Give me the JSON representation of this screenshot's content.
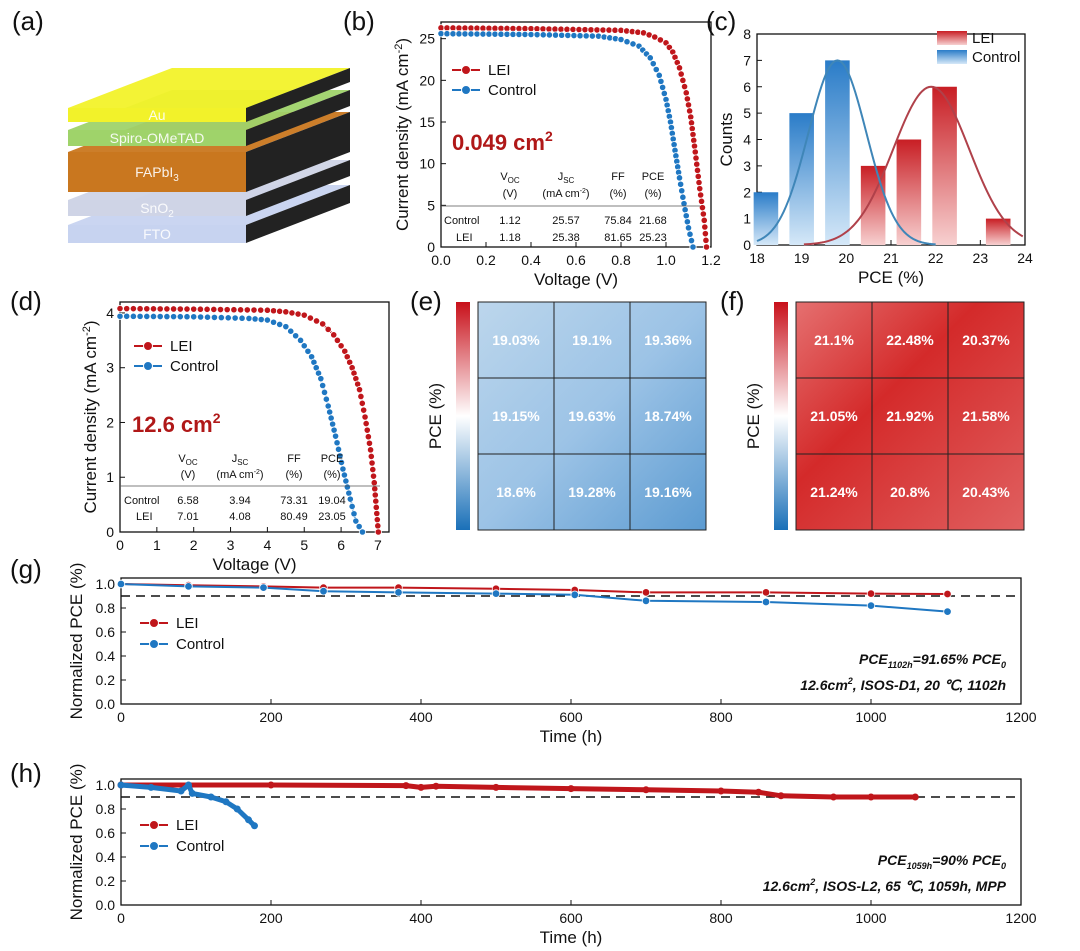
{
  "panels": {
    "a": "(a)",
    "b": "(b)",
    "c": "(c)",
    "d": "(d)",
    "e": "(e)",
    "f": "(f)",
    "g": "(g)",
    "h": "(h)"
  },
  "device_stack": {
    "layers": [
      "Au",
      "Spiro-OMeTAD",
      "FAPbI",
      "SnO",
      "FTO"
    ],
    "colors": [
      "#f2f22a",
      "#9fd36a",
      "#c9771f",
      "#cfd4e6",
      "#c7d3f0"
    ]
  },
  "colors": {
    "lei": "#c0161b",
    "control": "#1f77c2",
    "dash": "#111111"
  },
  "panel_b": {
    "area_label": "0.049 cm",
    "area_sup": "2",
    "table": {
      "headers": [
        "V",
        "J",
        "FF",
        "PCE"
      ],
      "header_subs": [
        "OC",
        "SC",
        "",
        ""
      ],
      "units": [
        "(V)",
        "(mA cm",
        "(%)",
        "(%)"
      ],
      "unit_sup": "-2",
      "unit_tail": ")",
      "rows": [
        {
          "name": "Control",
          "values": [
            "1.12",
            "25.57",
            "75.84",
            "21.68"
          ]
        },
        {
          "name": "LEI",
          "values": [
            "1.18",
            "25.38",
            "81.65",
            "25.23"
          ]
        }
      ]
    }
  },
  "panel_d": {
    "area_label": "12.6 cm",
    "area_sup": "2",
    "table": {
      "headers": [
        "V",
        "J",
        "FF",
        "PCE"
      ],
      "header_subs": [
        "OC",
        "SC",
        "",
        ""
      ],
      "units": [
        "(V)",
        "(mA cm",
        "(%)",
        "(%)"
      ],
      "unit_sup": "-2",
      "unit_tail": ")",
      "rows": [
        {
          "name": "Control",
          "values": [
            "6.58",
            "3.94",
            "73.31",
            "19.04"
          ]
        },
        {
          "name": "LEI",
          "values": [
            "7.01",
            "4.08",
            "80.49",
            "23.05"
          ]
        }
      ]
    }
  },
  "panel_g_note": {
    "line1_a": "PCE",
    "line1_sub": "1102h",
    "line1_b": "=91.65% PCE",
    "line1_sub2": "0",
    "line2_a": "12.6cm",
    "line2_sup": "2",
    "line2_b": ", ISOS-D1, 20 ℃, 1102h"
  },
  "panel_h_note": {
    "line1_a": "PCE",
    "line1_sub": "1059h",
    "line1_b": "=90% PCE",
    "line1_sub2": "0",
    "line2_a": "12.6cm",
    "line2_sup": "2",
    "line2_b": ", ISOS-L2, 65 ℃, 1059h, MPP"
  },
  "chart_data": [
    {
      "id": "b",
      "type": "line",
      "xlabel": "Voltage (V)",
      "ylabel": "Current density (mA cm",
      "ylabel_sup": "-2",
      "ylabel_tail": ")",
      "xlim": [
        0,
        1.2
      ],
      "ylim": [
        0,
        27
      ],
      "xticks": [
        "0.0",
        "0.2",
        "0.4",
        "0.6",
        "0.8",
        "1.0",
        "1.2"
      ],
      "yticks": [
        "0",
        "5",
        "10",
        "15",
        "20",
        "25"
      ],
      "series": [
        {
          "name": "LEI",
          "points": [
            [
              0,
              26.3
            ],
            [
              0.4,
              26.2
            ],
            [
              0.8,
              26.0
            ],
            [
              0.9,
              25.7
            ],
            [
              0.95,
              25.2
            ],
            [
              1.0,
              24.5
            ],
            [
              1.03,
              23.4
            ],
            [
              1.06,
              21.5
            ],
            [
              1.09,
              18.5
            ],
            [
              1.11,
              15.6
            ],
            [
              1.13,
              11.4
            ],
            [
              1.15,
              7.0
            ],
            [
              1.17,
              3.2
            ],
            [
              1.18,
              0
            ]
          ]
        },
        {
          "name": "Control",
          "points": [
            [
              0,
              25.6
            ],
            [
              0.4,
              25.5
            ],
            [
              0.7,
              25.3
            ],
            [
              0.8,
              24.9
            ],
            [
              0.88,
              24.1
            ],
            [
              0.93,
              22.7
            ],
            [
              0.97,
              20.6
            ],
            [
              1.0,
              17.7
            ],
            [
              1.02,
              15.0
            ],
            [
              1.04,
              11.6
            ],
            [
              1.06,
              8.3
            ],
            [
              1.08,
              5.2
            ],
            [
              1.1,
              2.3
            ],
            [
              1.12,
              0
            ]
          ]
        }
      ]
    },
    {
      "id": "c",
      "type": "bar",
      "xlabel": "PCE (%)",
      "ylabel": "Counts",
      "xlim": [
        18,
        24
      ],
      "ylim": [
        0,
        8
      ],
      "xticks": [
        "18",
        "19",
        "20",
        "21",
        "22",
        "23",
        "24"
      ],
      "yticks": [
        "0",
        "1",
        "2",
        "3",
        "4",
        "5",
        "6",
        "7",
        "8"
      ],
      "series": [
        {
          "name": "LEI",
          "bins": [
            [
              20.6,
              3
            ],
            [
              21.4,
              4
            ],
            [
              22.2,
              6
            ],
            [
              23.4,
              1
            ]
          ],
          "fit": {
            "mean": 21.9,
            "sd": 0.85,
            "peak": 6
          }
        },
        {
          "name": "Control",
          "bins": [
            [
              18.2,
              2
            ],
            [
              19.0,
              5
            ],
            [
              19.8,
              7
            ]
          ],
          "fit": {
            "mean": 19.8,
            "sd": 0.65,
            "peak": 7
          }
        }
      ]
    },
    {
      "id": "d",
      "type": "line",
      "xlabel": "Voltage (V)",
      "ylabel": "Current density (mA cm",
      "ylabel_sup": "-2",
      "ylabel_tail": ")",
      "xlim": [
        0,
        7.3
      ],
      "ylim": [
        0,
        4.2
      ],
      "xticks": [
        "0",
        "1",
        "2",
        "3",
        "4",
        "5",
        "6",
        "7"
      ],
      "yticks": [
        "0",
        "1",
        "2",
        "3",
        "4"
      ],
      "series": [
        {
          "name": "LEI",
          "points": [
            [
              0,
              4.08
            ],
            [
              2,
              4.07
            ],
            [
              4,
              4.05
            ],
            [
              4.5,
              4.02
            ],
            [
              5,
              3.96
            ],
            [
              5.5,
              3.8
            ],
            [
              5.8,
              3.6
            ],
            [
              6.1,
              3.3
            ],
            [
              6.3,
              3.0
            ],
            [
              6.5,
              2.6
            ],
            [
              6.65,
              2.1
            ],
            [
              6.8,
              1.5
            ],
            [
              6.9,
              0.9
            ],
            [
              7.01,
              0
            ]
          ]
        },
        {
          "name": "Control",
          "points": [
            [
              0,
              3.94
            ],
            [
              2,
              3.93
            ],
            [
              3.5,
              3.9
            ],
            [
              4,
              3.87
            ],
            [
              4.5,
              3.75
            ],
            [
              4.9,
              3.5
            ],
            [
              5.2,
              3.2
            ],
            [
              5.45,
              2.8
            ],
            [
              5.65,
              2.3
            ],
            [
              5.85,
              1.75
            ],
            [
              6.05,
              1.15
            ],
            [
              6.25,
              0.6
            ],
            [
              6.4,
              0.2
            ],
            [
              6.58,
              0
            ]
          ]
        }
      ]
    },
    {
      "id": "e",
      "type": "heatmap",
      "ylabel": "PCE (%)",
      "values": [
        [
          "19.03%",
          "19.1%",
          "19.36%"
        ],
        [
          "19.15%",
          "19.63%",
          "18.74%"
        ],
        [
          "18.6%",
          "19.28%",
          "19.16%"
        ]
      ]
    },
    {
      "id": "f",
      "type": "heatmap",
      "ylabel": "PCE (%)",
      "values": [
        [
          "21.1%",
          "22.48%",
          "20.37%"
        ],
        [
          "21.05%",
          "21.92%",
          "21.58%"
        ],
        [
          "21.24%",
          "20.8%",
          "20.43%"
        ]
      ]
    },
    {
      "id": "g",
      "type": "line",
      "xlabel": "Time (h)",
      "ylabel": "Normalized PCE (%)",
      "xlim": [
        0,
        1200
      ],
      "ylim": [
        0,
        1.05
      ],
      "xticks": [
        "0",
        "200",
        "400",
        "600",
        "800",
        "1000",
        "1200"
      ],
      "yticks": [
        "0.0",
        "0.2",
        "0.4",
        "0.6",
        "0.8",
        "1.0"
      ],
      "reference": 0.9,
      "series": [
        {
          "name": "LEI",
          "points": [
            [
              0,
              1.0
            ],
            [
              90,
              0.99
            ],
            [
              190,
              0.98
            ],
            [
              270,
              0.97
            ],
            [
              370,
              0.97
            ],
            [
              500,
              0.96
            ],
            [
              605,
              0.95
            ],
            [
              700,
              0.93
            ],
            [
              860,
              0.93
            ],
            [
              1000,
              0.92
            ],
            [
              1102,
              0.9165
            ]
          ]
        },
        {
          "name": "Control",
          "points": [
            [
              0,
              1.0
            ],
            [
              90,
              0.98
            ],
            [
              190,
              0.97
            ],
            [
              270,
              0.94
            ],
            [
              370,
              0.93
            ],
            [
              500,
              0.92
            ],
            [
              605,
              0.91
            ],
            [
              700,
              0.86
            ],
            [
              860,
              0.85
            ],
            [
              1000,
              0.82
            ],
            [
              1102,
              0.77
            ]
          ]
        }
      ]
    },
    {
      "id": "h",
      "type": "line",
      "xlabel": "Time (h)",
      "ylabel": "Normalized PCE (%)",
      "xlim": [
        0,
        1200
      ],
      "ylim": [
        0,
        1.05
      ],
      "xticks": [
        "0",
        "200",
        "400",
        "600",
        "800",
        "1000",
        "1200"
      ],
      "yticks": [
        "0.0",
        "0.2",
        "0.4",
        "0.6",
        "0.8",
        "1.0"
      ],
      "reference": 0.9,
      "series": [
        {
          "name": "LEI",
          "points": [
            [
              0,
              1.0
            ],
            [
              200,
              1.0
            ],
            [
              380,
              0.995
            ],
            [
              400,
              0.98
            ],
            [
              420,
              0.99
            ],
            [
              500,
              0.98
            ],
            [
              600,
              0.97
            ],
            [
              700,
              0.96
            ],
            [
              800,
              0.95
            ],
            [
              850,
              0.94
            ],
            [
              880,
              0.91
            ],
            [
              950,
              0.9
            ],
            [
              1000,
              0.9
            ],
            [
              1059,
              0.9
            ]
          ]
        },
        {
          "name": "Control",
          "points": [
            [
              0,
              1.0
            ],
            [
              40,
              0.98
            ],
            [
              80,
              0.95
            ],
            [
              90,
              1.0
            ],
            [
              95,
              0.93
            ],
            [
              120,
              0.9
            ],
            [
              140,
              0.86
            ],
            [
              155,
              0.8
            ],
            [
              170,
              0.71
            ],
            [
              178,
              0.66
            ]
          ]
        }
      ]
    }
  ]
}
